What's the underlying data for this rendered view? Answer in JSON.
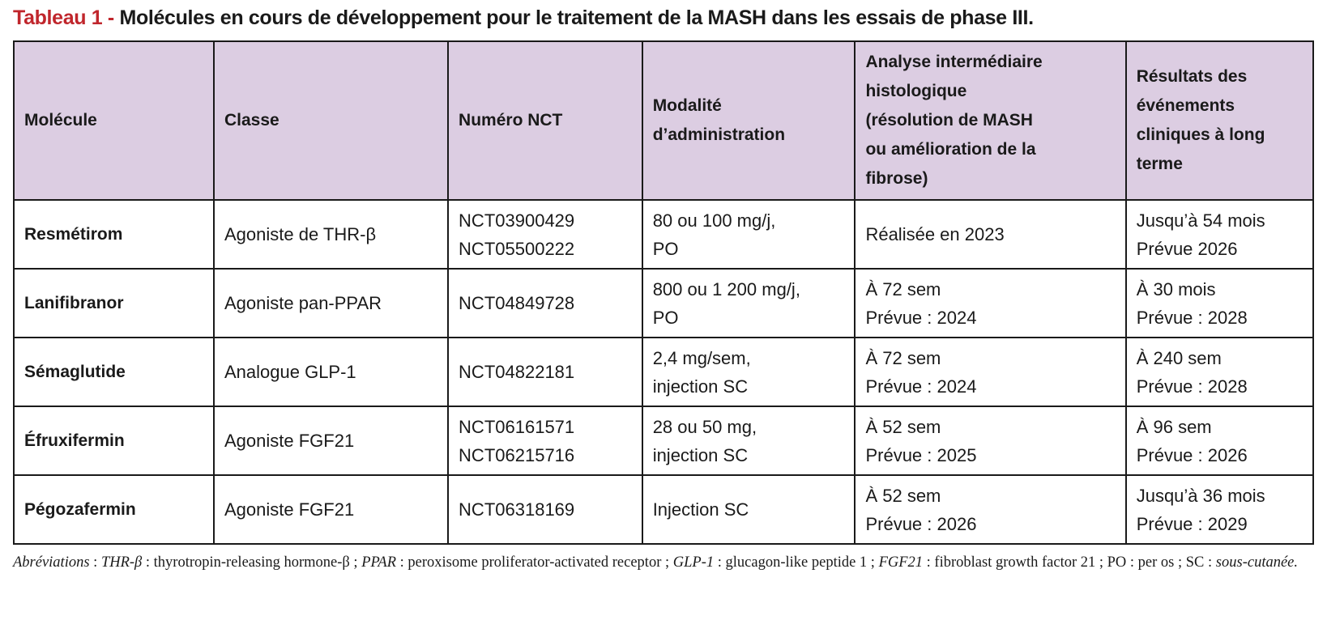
{
  "title": {
    "label": "Tableau 1 -",
    "text": " Molécules en cours de développement pour le traitement de la MASH dans les essais de phase III."
  },
  "table": {
    "headers": [
      [
        "Molécule"
      ],
      [
        "Classe"
      ],
      [
        "Numéro NCT"
      ],
      [
        "Modalité",
        "d’administration"
      ],
      [
        "Analyse intermédiaire",
        "histologique",
        "(résolution de MASH",
        "ou amélioration de la",
        "fibrose)"
      ],
      [
        "Résultats des",
        "événements",
        "cliniques à long",
        "terme"
      ]
    ],
    "rows": [
      [
        [
          "Resmétirom"
        ],
        [
          "Agoniste de THR-β"
        ],
        [
          "NCT03900429",
          "NCT05500222"
        ],
        [
          "80 ou 100 mg/j,",
          "PO"
        ],
        [
          "Réalisée en 2023"
        ],
        [
          "Jusqu’à 54 mois",
          "Prévue 2026"
        ]
      ],
      [
        [
          "Lanifibranor"
        ],
        [
          "Agoniste pan-PPAR"
        ],
        [
          "NCT04849728"
        ],
        [
          "800 ou 1 200 mg/j,",
          "PO"
        ],
        [
          "À 72 sem",
          "Prévue : 2024"
        ],
        [
          "À 30 mois",
          "Prévue : 2028"
        ]
      ],
      [
        [
          "Sémaglutide"
        ],
        [
          "Analogue GLP-1"
        ],
        [
          "NCT04822181"
        ],
        [
          "2,4 mg/sem,",
          "injection SC"
        ],
        [
          "À 72 sem",
          "Prévue : 2024"
        ],
        [
          "À 240 sem",
          "Prévue : 2028"
        ]
      ],
      [
        [
          "Éfruxifermin"
        ],
        [
          "Agoniste FGF21"
        ],
        [
          "NCT06161571",
          "NCT06215716"
        ],
        [
          "28 ou 50 mg,",
          "injection SC"
        ],
        [
          "À 52 sem",
          "Prévue : 2025"
        ],
        [
          "À 96 sem",
          "Prévue : 2026"
        ]
      ],
      [
        [
          "Pégozafermin"
        ],
        [
          "Agoniste FGF21"
        ],
        [
          "NCT06318169"
        ],
        [
          "Injection SC"
        ],
        [
          "À 52 sem",
          "Prévue : 2026"
        ],
        [
          "Jusqu’à 36 mois",
          "Prévue : 2029"
        ]
      ]
    ]
  },
  "notes": [
    {
      "t": "Abréviations",
      "i": true
    },
    {
      "t": " : ",
      "i": false
    },
    {
      "t": "THR-β",
      "i": true
    },
    {
      "t": " : thyrotropin-releasing hormone-β ; ",
      "i": false
    },
    {
      "t": "PPAR",
      "i": true
    },
    {
      "t": " : peroxisome proliferator-activated receptor ; ",
      "i": false
    },
    {
      "t": "GLP-1",
      "i": true
    },
    {
      "t": " : glucagon-like peptide 1 ; ",
      "i": false
    },
    {
      "t": "FGF21",
      "i": true
    },
    {
      "t": " : fibroblast growth factor 21 ; PO : per os ; SC : ",
      "i": false
    },
    {
      "t": "sous-cutanée.",
      "i": true
    }
  ]
}
